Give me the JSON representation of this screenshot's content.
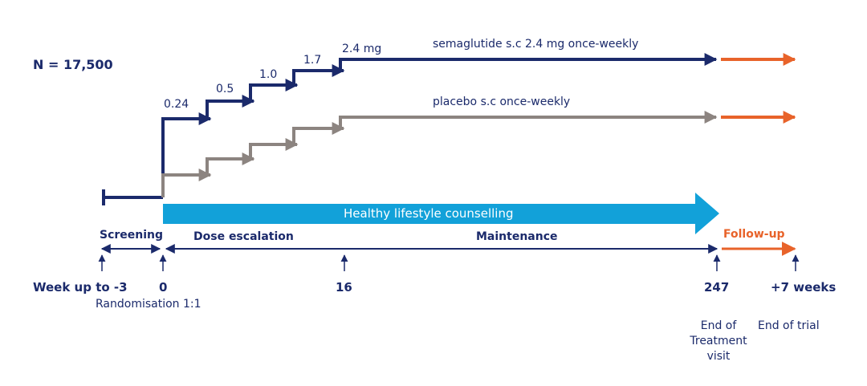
{
  "population": "N = 17,500",
  "doses": [
    "0.24",
    "0.5",
    "1.0",
    "1.7",
    "2.4 mg"
  ],
  "arms": {
    "semaglutide": "semaglutide s.c  2.4 mg once-weekly",
    "placebo": "placebo s.c  once-weekly"
  },
  "lifestyle": "Healthy lifestyle counselling",
  "phases": {
    "screening": "Screening",
    "dose_escalation": "Dose escalation",
    "maintenance": "Maintenance",
    "follow_up": "Follow-up"
  },
  "timepoints": {
    "screening_start": "Week up to -3",
    "randomisation_week": "0",
    "randomisation": "Randomisation 1:1",
    "week16": "16",
    "week247": "247",
    "followup_end": "+7 weeks"
  },
  "visits": {
    "end_of_treatment": [
      "End of",
      "Treatment",
      "visit"
    ],
    "end_of_trial": "End of trial"
  },
  "colors": {
    "navy": "#1b2a6b",
    "placebo_gray": "#8c8480",
    "lifestyle_blue": "#12a1d9",
    "follow_up_orange": "#e8632a"
  }
}
